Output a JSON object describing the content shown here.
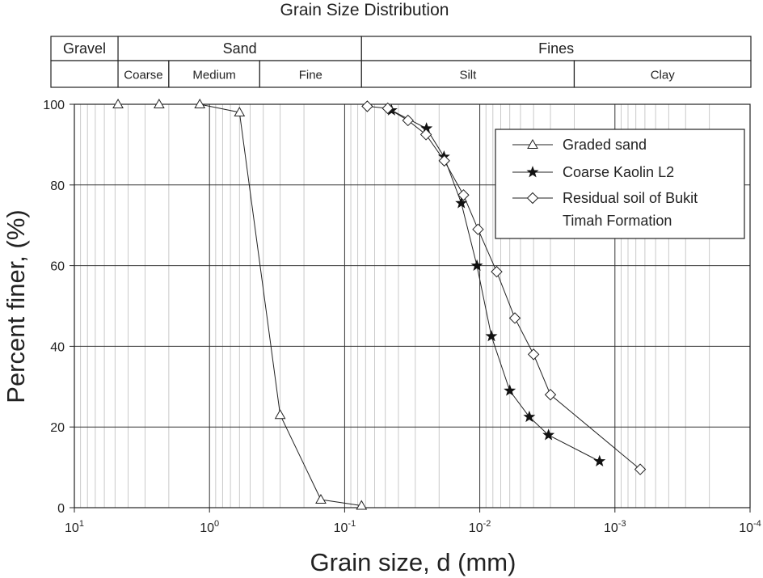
{
  "chart_data": {
    "type": "scatter",
    "title": "Grain Size Distribution",
    "xlabel": "Grain size, d (mm)",
    "ylabel": "Percent finer, (%)",
    "x_scale": "log",
    "x_reversed": true,
    "xlim": [
      10,
      0.0001
    ],
    "ylim": [
      0,
      100
    ],
    "grid": true,
    "legend_placement": "top-right",
    "x_ticks": [
      {
        "value": 10,
        "base": "10",
        "exp": "1"
      },
      {
        "value": 1,
        "base": "10",
        "exp": "0"
      },
      {
        "value": 0.1,
        "base": "10",
        "exp": "-1"
      },
      {
        "value": 0.01,
        "base": "10",
        "exp": "-2"
      },
      {
        "value": 0.001,
        "base": "10",
        "exp": "-3"
      },
      {
        "value": 0.0001,
        "base": "10",
        "exp": "-4"
      }
    ],
    "y_ticks": [
      0,
      20,
      40,
      60,
      80,
      100
    ],
    "series": [
      {
        "name": "Graded sand",
        "marker": "triangle-open",
        "x": [
          4.75,
          2.36,
          1.18,
          0.6,
          0.3,
          0.15,
          0.075
        ],
        "y": [
          100,
          100,
          100,
          98,
          23,
          2,
          0.5
        ]
      },
      {
        "name": "Coarse Kaolin L2",
        "marker": "star-filled",
        "x": [
          0.045,
          0.0248,
          0.0184,
          0.0137,
          0.0105,
          0.0082,
          0.006,
          0.0043,
          0.0031,
          0.0013
        ],
        "y": [
          98.5,
          94,
          87,
          75.5,
          60,
          42.5,
          29,
          22.5,
          18,
          11.5
        ]
      },
      {
        "name": "Residual soil of Bukit Timah Formation",
        "legend_lines": [
          "Residual soil of Bukit",
          "Timah Formation"
        ],
        "marker": "diamond-open",
        "x": [
          0.068,
          0.048,
          0.034,
          0.025,
          0.0183,
          0.0132,
          0.0103,
          0.0075,
          0.0055,
          0.004,
          0.003,
          0.00065
        ],
        "y": [
          99.5,
          99,
          96,
          92.5,
          86,
          77.5,
          69,
          58.5,
          47,
          38,
          28,
          9.5
        ]
      }
    ],
    "classification": {
      "top_row": [
        {
          "label": "Gravel",
          "from": 10,
          "to": 4.75
        },
        {
          "label": "Sand",
          "from": 4.75,
          "to": 0.075
        },
        {
          "label": "Fines",
          "from": 0.075,
          "to": 0.0001
        }
      ],
      "bottom_row": [
        {
          "label": "",
          "from": 10,
          "to": 4.75
        },
        {
          "label": "Coarse",
          "from": 4.75,
          "to": 2.0
        },
        {
          "label": "Medium",
          "from": 2.0,
          "to": 0.425
        },
        {
          "label": "Fine",
          "from": 0.425,
          "to": 0.075
        },
        {
          "label": "Silt",
          "from": 0.075,
          "to": 0.002
        },
        {
          "label": "Clay",
          "from": 0.002,
          "to": 0.0001
        }
      ]
    }
  }
}
